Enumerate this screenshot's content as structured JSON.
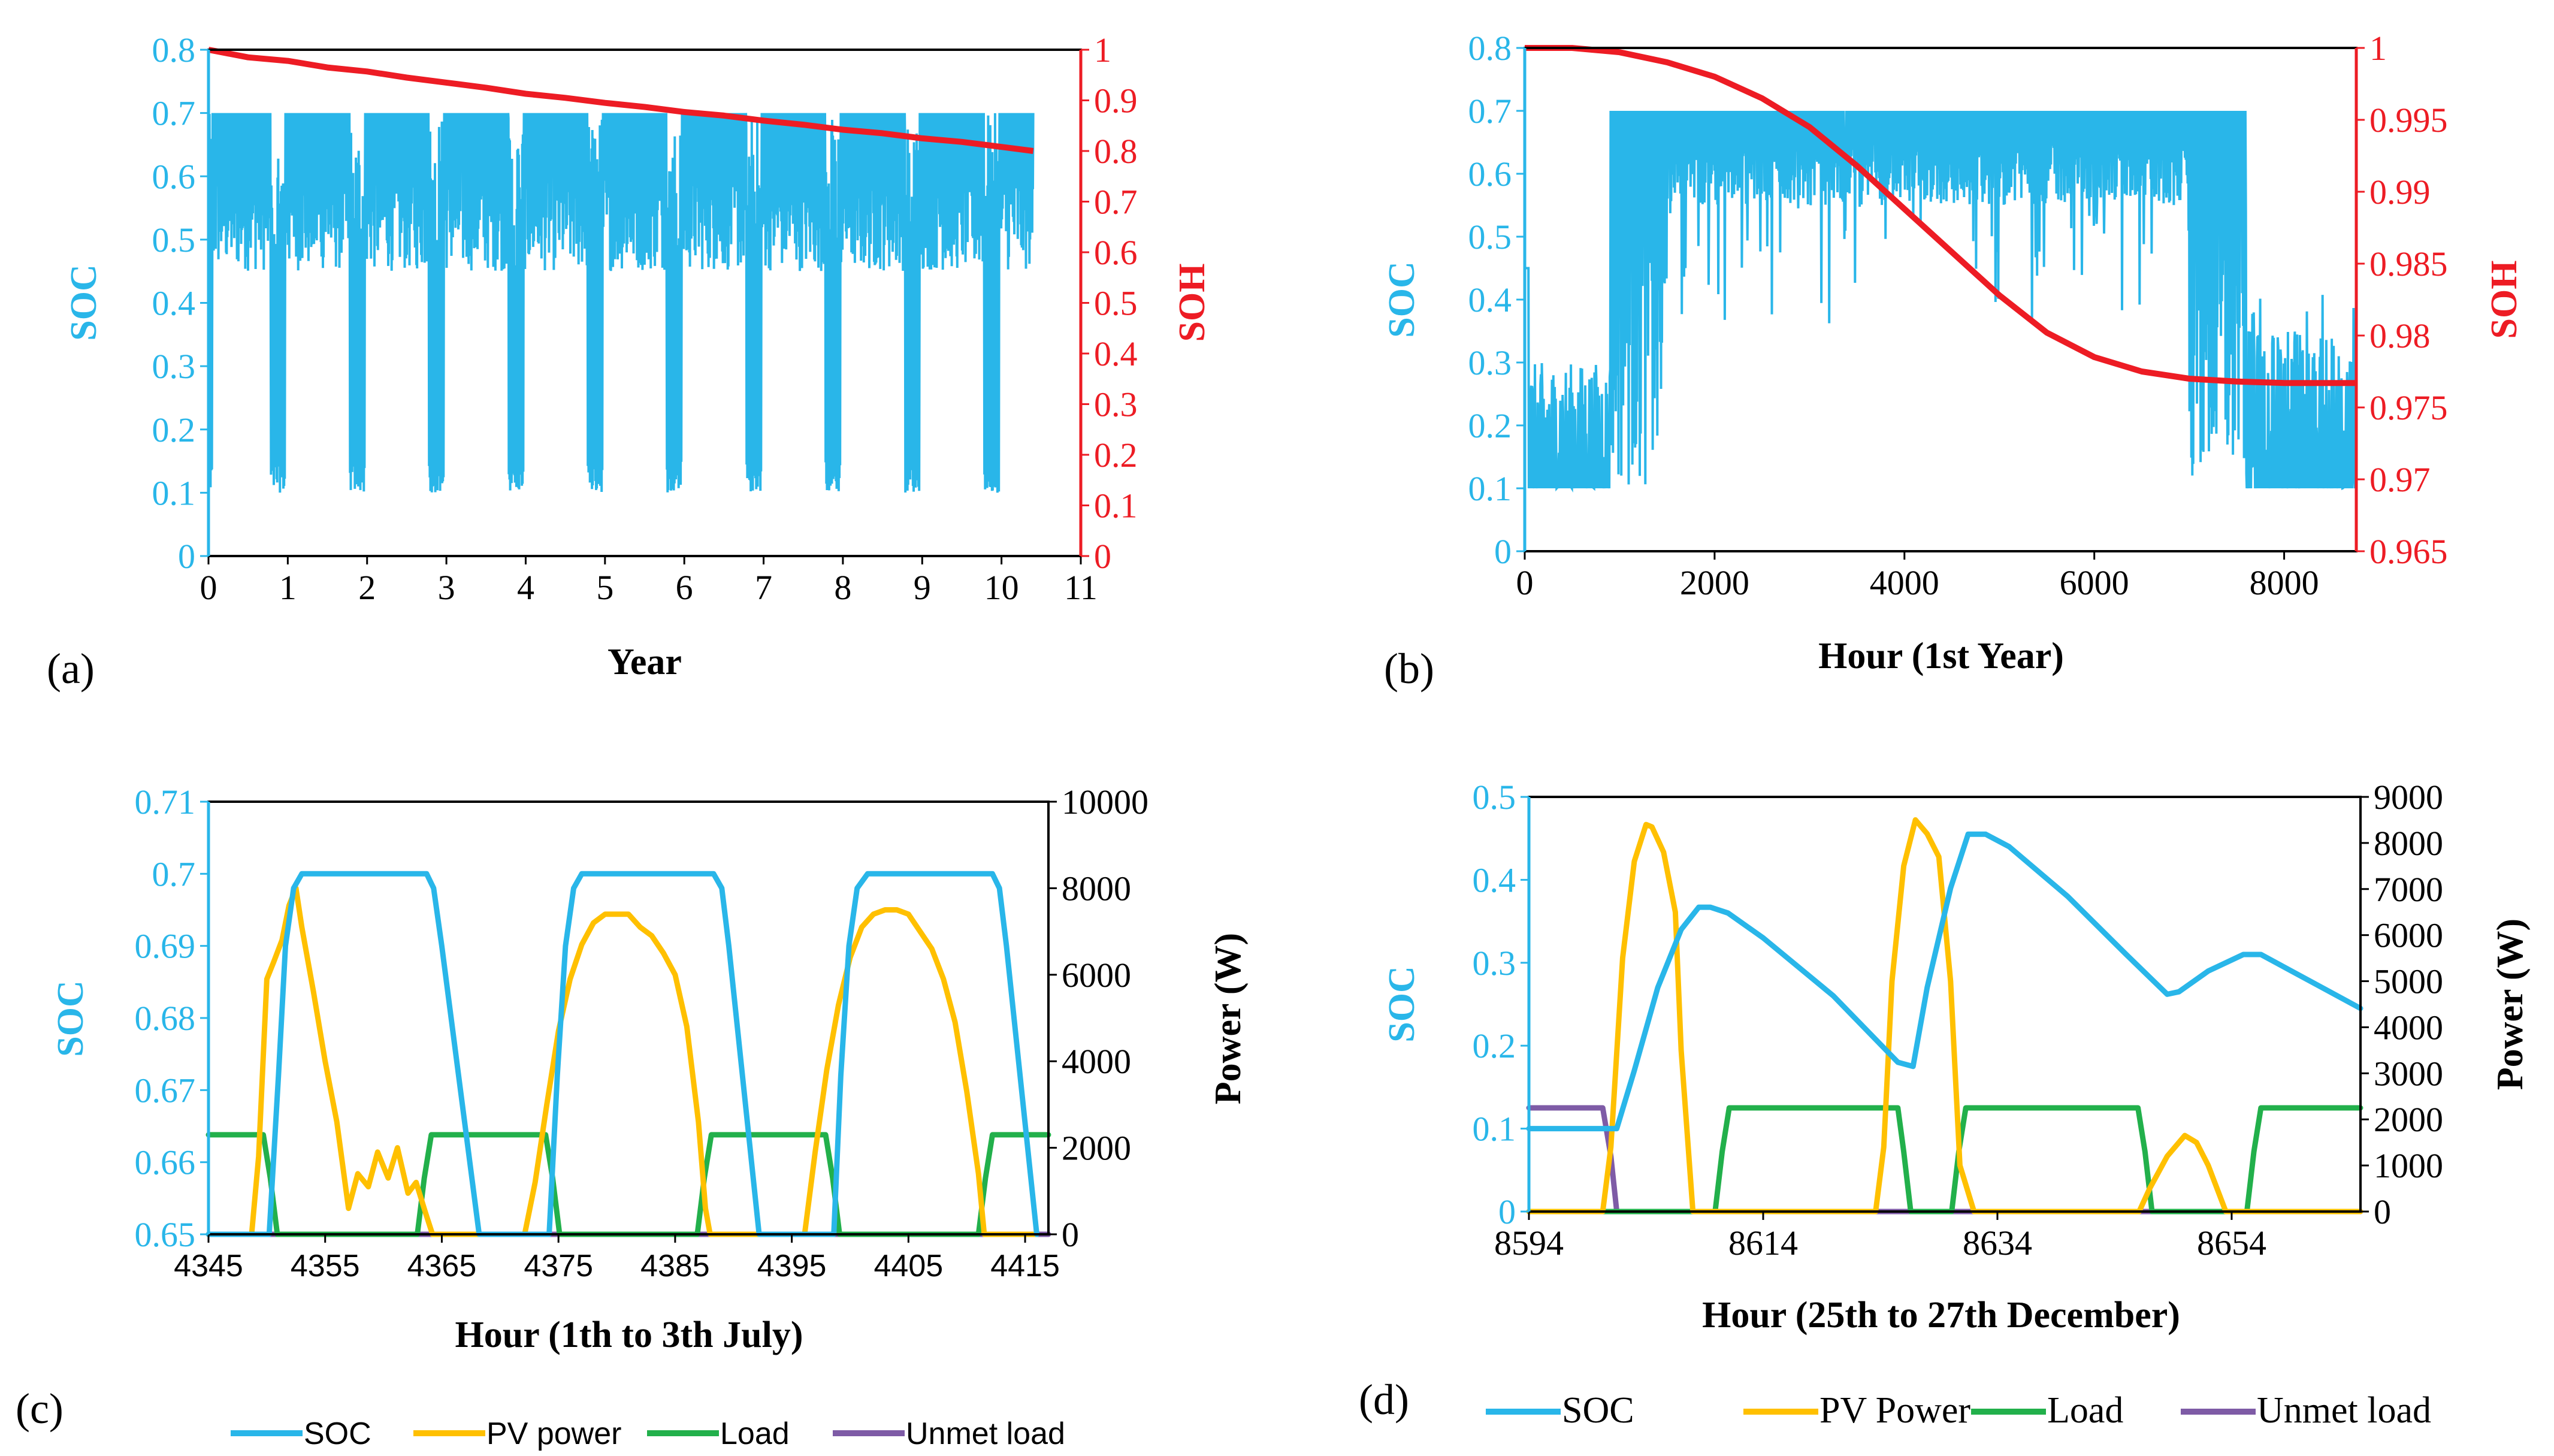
{
  "colors": {
    "soc": "#29B6E9",
    "soh": "#ED1C24",
    "pv": "#FFC000",
    "load": "#22B04B",
    "unmet": "#7E5BA6",
    "axis": "#000000"
  },
  "chart_data": [
    {
      "panel": "(a)",
      "type": "line",
      "xlabel": "Year",
      "ylabel_left": "SOC",
      "ylabel_right": "SOH",
      "xlim": [
        0,
        11
      ],
      "ylim_left": [
        0,
        0.8
      ],
      "ylim_right": [
        0,
        1
      ],
      "xticks": [
        "0",
        "1",
        "2",
        "3",
        "4",
        "5",
        "6",
        "7",
        "8",
        "9",
        "10",
        "11"
      ],
      "yticks_left": [
        "0",
        "0.1",
        "0.2",
        "0.3",
        "0.4",
        "0.5",
        "0.6",
        "0.7",
        "0.8"
      ],
      "yticks_right": [
        "0",
        "0.1",
        "0.2",
        "0.3",
        "0.4",
        "0.5",
        "0.6",
        "0.7",
        "0.8",
        "0.9",
        "1"
      ],
      "series": [
        {
          "name": "SOC",
          "axis": "left",
          "description": "Dense hourly oscillation between 0.1 and 0.7 with annual winter dips to 0.1",
          "min": 0.1,
          "max": 0.7,
          "x_end": 10.4
        },
        {
          "name": "SOH",
          "axis": "right",
          "x": [
            0,
            0.5,
            1,
            1.5,
            2,
            2.5,
            3,
            3.5,
            4,
            4.5,
            5,
            5.5,
            6,
            6.5,
            7,
            7.5,
            8,
            8.5,
            9,
            9.5,
            10,
            10.4
          ],
          "y": [
            1.0,
            0.985,
            0.978,
            0.965,
            0.957,
            0.945,
            0.935,
            0.925,
            0.913,
            0.905,
            0.895,
            0.887,
            0.877,
            0.87,
            0.86,
            0.852,
            0.842,
            0.835,
            0.825,
            0.818,
            0.808,
            0.8
          ]
        }
      ]
    },
    {
      "panel": "(b)",
      "type": "line",
      "xlabel": "Hour (1st Year)",
      "ylabel_left": "SOC",
      "ylabel_right": "SOH",
      "xlim": [
        0,
        8760
      ],
      "ylim_left": [
        0,
        0.8
      ],
      "ylim_right": [
        0.965,
        1
      ],
      "xticks": [
        "0",
        "2000",
        "4000",
        "6000",
        "8000"
      ],
      "yticks_left": [
        "0",
        "0.1",
        "0.2",
        "0.3",
        "0.4",
        "0.5",
        "0.6",
        "0.7",
        "0.8"
      ],
      "yticks_right": [
        "0.965",
        "0.97",
        "0.975",
        "0.98",
        "0.985",
        "0.99",
        "0.995",
        "1"
      ],
      "series": [
        {
          "name": "SOC",
          "axis": "left",
          "description": "Low 0.1-0.3 in winter hours, 0.55-0.7 from about 1500 to 7000, back to 0.1-0.4 after 7500"
        },
        {
          "name": "SOH",
          "axis": "right",
          "x": [
            0,
            500,
            1000,
            1500,
            2000,
            2500,
            3000,
            3500,
            4000,
            4500,
            5000,
            5500,
            6000,
            6500,
            7000,
            7500,
            8000,
            8760
          ],
          "y": [
            1.0,
            1.0,
            0.9997,
            0.999,
            0.998,
            0.9965,
            0.9945,
            0.9918,
            0.9888,
            0.9858,
            0.9828,
            0.9802,
            0.9785,
            0.9775,
            0.977,
            0.9768,
            0.9767,
            0.9767
          ]
        }
      ]
    },
    {
      "panel": "(c)",
      "type": "line",
      "xlabel": "Hour (1th to 3th July)",
      "ylabel_left": "SOC",
      "ylabel_right": "Power (W)",
      "xlim": [
        4345,
        4417
      ],
      "ylim_left": [
        0.65,
        0.71
      ],
      "ylim_right": [
        0,
        10000
      ],
      "xticks": [
        "4345",
        "4355",
        "4365",
        "4375",
        "4385",
        "4395",
        "4405",
        "4415"
      ],
      "yticks_left": [
        "0.65",
        "0.66",
        "0.67",
        "0.68",
        "0.69",
        "0.7",
        "0.71"
      ],
      "yticks_right": [
        "0",
        "2000",
        "4000",
        "6000",
        "8000",
        "10000"
      ],
      "legend": [
        "SOC",
        "PV power",
        "Load",
        "Unmet load"
      ],
      "series": [
        {
          "name": "SOC",
          "axis": "left",
          "x": [
            4345,
            4350.2,
            4351,
            4351.6,
            4352.3,
            4353,
            4363.7,
            4364.3,
            4365,
            4368.2,
            4374.2,
            4374.9,
            4375.6,
            4376.3,
            4377,
            4388.3,
            4389,
            4389.6,
            4392.2,
            4398.6,
            4399.2,
            4399.9,
            4400.6,
            4401.5,
            4412.2,
            4412.8,
            4413.4,
            4416
          ],
          "y": [
            0.65,
            0.65,
            0.672,
            0.69,
            0.698,
            0.7,
            0.7,
            0.698,
            0.69,
            0.65,
            0.65,
            0.672,
            0.69,
            0.698,
            0.7,
            0.7,
            0.698,
            0.69,
            0.65,
            0.65,
            0.672,
            0.69,
            0.698,
            0.7,
            0.7,
            0.698,
            0.69,
            0.65
          ]
        },
        {
          "name": "PV power",
          "axis": "right",
          "x": [
            4345,
            4348.7,
            4349.3,
            4350,
            4350.6,
            4351.3,
            4351.9,
            4352.5,
            4353,
            4354,
            4355,
            4356,
            4357,
            4357.8,
            4358.7,
            4359.5,
            4360.4,
            4361.2,
            4362.1,
            4362.8,
            4363.6,
            4364.2,
            4372.1,
            4373,
            4374,
            4375,
            4376,
            4377,
            4378,
            4379,
            4380,
            4381,
            4382,
            4383,
            4384,
            4385,
            4386,
            4387,
            4387.6,
            4388,
            4396.1,
            4397,
            4398,
            4399,
            4400,
            4401,
            4402,
            4403,
            4404,
            4405,
            4406,
            4407,
            4408,
            4409,
            4410,
            4411,
            4411.5,
            4416
          ],
          "y": [
            0,
            0,
            1800,
            5900,
            6300,
            6800,
            7600,
            8000,
            7100,
            5600,
            4000,
            2600,
            600,
            1400,
            1100,
            1900,
            1300,
            2000,
            950,
            1200,
            500,
            0,
            0,
            1200,
            3000,
            4700,
            5900,
            6700,
            7200,
            7400,
            7400,
            7400,
            7100,
            6900,
            6500,
            6000,
            4800,
            2600,
            600,
            0,
            0,
            1900,
            3800,
            5300,
            6400,
            7100,
            7400,
            7500,
            7500,
            7400,
            7000,
            6600,
            5900,
            4900,
            3300,
            1400,
            0,
            0
          ]
        },
        {
          "name": "Load",
          "axis": "right",
          "x": [
            4345,
            4349.7,
            4350.3,
            4350.9,
            4362.9,
            4363.5,
            4364.1,
            4366.3,
            4366.9,
            4373.9,
            4374.5,
            4375.1,
            4386.9,
            4387.5,
            4388.1,
            4390.3,
            4390.9,
            4397.9,
            4398.5,
            4399.1,
            4411,
            4411.6,
            4412.2,
            4414.3,
            4414.9,
            4417
          ],
          "y": [
            2300,
            2300,
            1300,
            0,
            0,
            1300,
            2300,
            2300,
            2300,
            2300,
            1300,
            0,
            0,
            1300,
            2300,
            2300,
            2300,
            2300,
            1300,
            0,
            0,
            1300,
            2300,
            2300,
            2300,
            2300
          ]
        },
        {
          "name": "Unmet load",
          "axis": "right",
          "x": [
            4345,
            4417
          ],
          "y": [
            0,
            0
          ]
        }
      ]
    },
    {
      "panel": "(d)",
      "type": "line",
      "xlabel": "Hour (25th to 27th December)",
      "ylabel_left": "SOC",
      "ylabel_right": "Power (W)",
      "xlim": [
        8594,
        8665
      ],
      "ylim_left": [
        0,
        0.5
      ],
      "ylim_right": [
        0,
        9000
      ],
      "xticks": [
        "8594",
        "8614",
        "8634",
        "8654"
      ],
      "yticks_left": [
        "0",
        "0.1",
        "0.2",
        "0.3",
        "0.4",
        "0.5"
      ],
      "yticks_right": [
        "0",
        "1000",
        "2000",
        "3000",
        "4000",
        "5000",
        "6000",
        "7000",
        "8000",
        "9000"
      ],
      "legend": [
        "SOC",
        "PV Power",
        "Load",
        "Unmet load"
      ],
      "series": [
        {
          "name": "SOC",
          "axis": "left",
          "x": [
            8594,
            8600.5,
            8601.5,
            8603,
            8605,
            8607,
            8608.5,
            8609.5,
            8611,
            8614,
            8620,
            8625.5,
            8626.8,
            8628,
            8630,
            8631.5,
            8633,
            8635,
            8640,
            8645,
            8648.5,
            8649.5,
            8652,
            8655,
            8656.5,
            8665
          ],
          "y": [
            0.1,
            0.1,
            0.1,
            0.17,
            0.27,
            0.34,
            0.367,
            0.367,
            0.36,
            0.33,
            0.26,
            0.18,
            0.175,
            0.27,
            0.39,
            0.455,
            0.455,
            0.44,
            0.38,
            0.31,
            0.262,
            0.265,
            0.29,
            0.31,
            0.31,
            0.245
          ]
        },
        {
          "name": "PV Power",
          "axis": "right",
          "x": [
            8594,
            8600.3,
            8601,
            8602,
            8603,
            8604,
            8604.5,
            8605.5,
            8606.5,
            8607,
            8608,
            8623.6,
            8624.3,
            8625,
            8626,
            8627,
            8628,
            8629,
            8630,
            8630.8,
            8632,
            8646.1,
            8647,
            8648.5,
            8650,
            8651,
            8652,
            8653.5,
            8665
          ],
          "y": [
            0,
            0,
            1400,
            5500,
            7600,
            8400,
            8350,
            7800,
            6500,
            3500,
            0,
            0,
            1400,
            5000,
            7500,
            8500,
            8200,
            7700,
            5000,
            1000,
            0,
            0,
            500,
            1200,
            1650,
            1500,
            1000,
            0,
            0
          ]
        },
        {
          "name": "Load",
          "axis": "right",
          "x": [
            8594,
            8609.9,
            8610.5,
            8611.1,
            8625.5,
            8626,
            8626.6,
            8630.1,
            8630.7,
            8631.3,
            8646,
            8646.6,
            8647.2,
            8655.3,
            8655.9,
            8656.5,
            8665
          ],
          "y": [
            0,
            0,
            1300,
            2250,
            2250,
            1300,
            0,
            0,
            1300,
            2250,
            2250,
            1300,
            0,
            0,
            1300,
            2250,
            2250
          ]
        },
        {
          "name": "Unmet load",
          "axis": "right",
          "x": [
            8594,
            8600.3,
            8601,
            8601.5,
            8665
          ],
          "y": [
            2250,
            2250,
            1200,
            0,
            0
          ]
        }
      ]
    }
  ]
}
